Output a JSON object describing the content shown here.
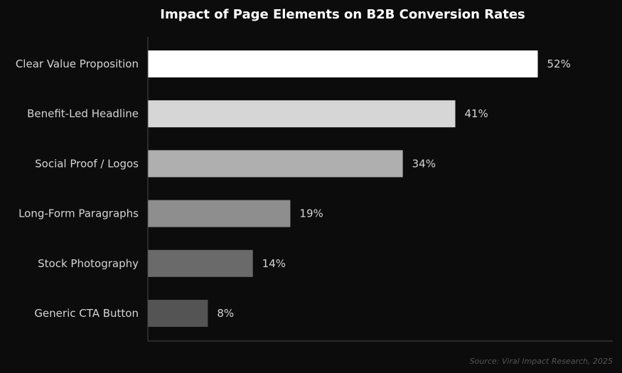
{
  "chart_data": {
    "type": "bar",
    "orientation": "horizontal",
    "title": "Impact of Page Elements on B2B Conversion Rates",
    "xlabel": "",
    "ylabel": "",
    "xlim": [
      0,
      62
    ],
    "grid": false,
    "legend": "none",
    "value_suffix": "%",
    "categories": [
      "Clear Value Proposition",
      "Benefit-Led Headline",
      "Social Proof / Logos",
      "Long-Form Paragraphs",
      "Stock Photography",
      "Generic CTA Button"
    ],
    "values": [
      52,
      41,
      34,
      19,
      14,
      8
    ],
    "data_labels": [
      "52%",
      "41%",
      "34%",
      "19%",
      "14%",
      "8%"
    ],
    "bar_colors": [
      "#ffffff",
      "#d6d6d6",
      "#afafaf",
      "#8e8e8e",
      "#6a6a6a",
      "#545454"
    ],
    "source": "Source: Viral Impact Research, 2025"
  },
  "colors": {
    "background": "#0c0c0c",
    "axis": "#4a4a4a",
    "text": "#d4d4d4",
    "title": "#ffffff",
    "source": "#555555"
  }
}
